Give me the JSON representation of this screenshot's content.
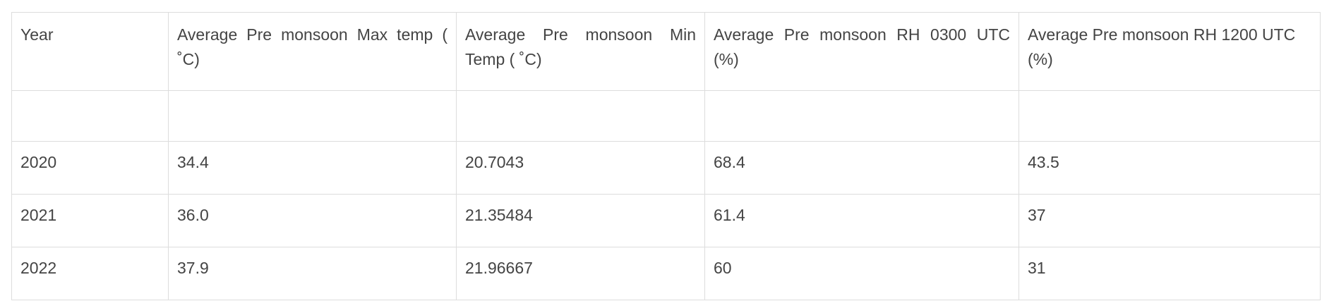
{
  "table": {
    "headers": [
      "Year",
      "Average  Pre monsoon Max temp ( ˚C)",
      "Average   Pre   monsoon   Min Temp ( ˚C)",
      "Average  Pre  monsoon  RH  0300  UTC (%)",
      "Average Pre monsoon RH 1200 UTC (%)"
    ],
    "rows": [
      [
        "",
        "",
        "",
        "",
        ""
      ],
      [
        "2020",
        "34.4",
        "20.7043",
        "68.4",
        "43.5"
      ],
      [
        "2021",
        "36.0",
        "21.35484",
        "61.4",
        "37"
      ],
      [
        "2022",
        "37.9",
        "21.96667",
        "60",
        "31"
      ]
    ]
  }
}
